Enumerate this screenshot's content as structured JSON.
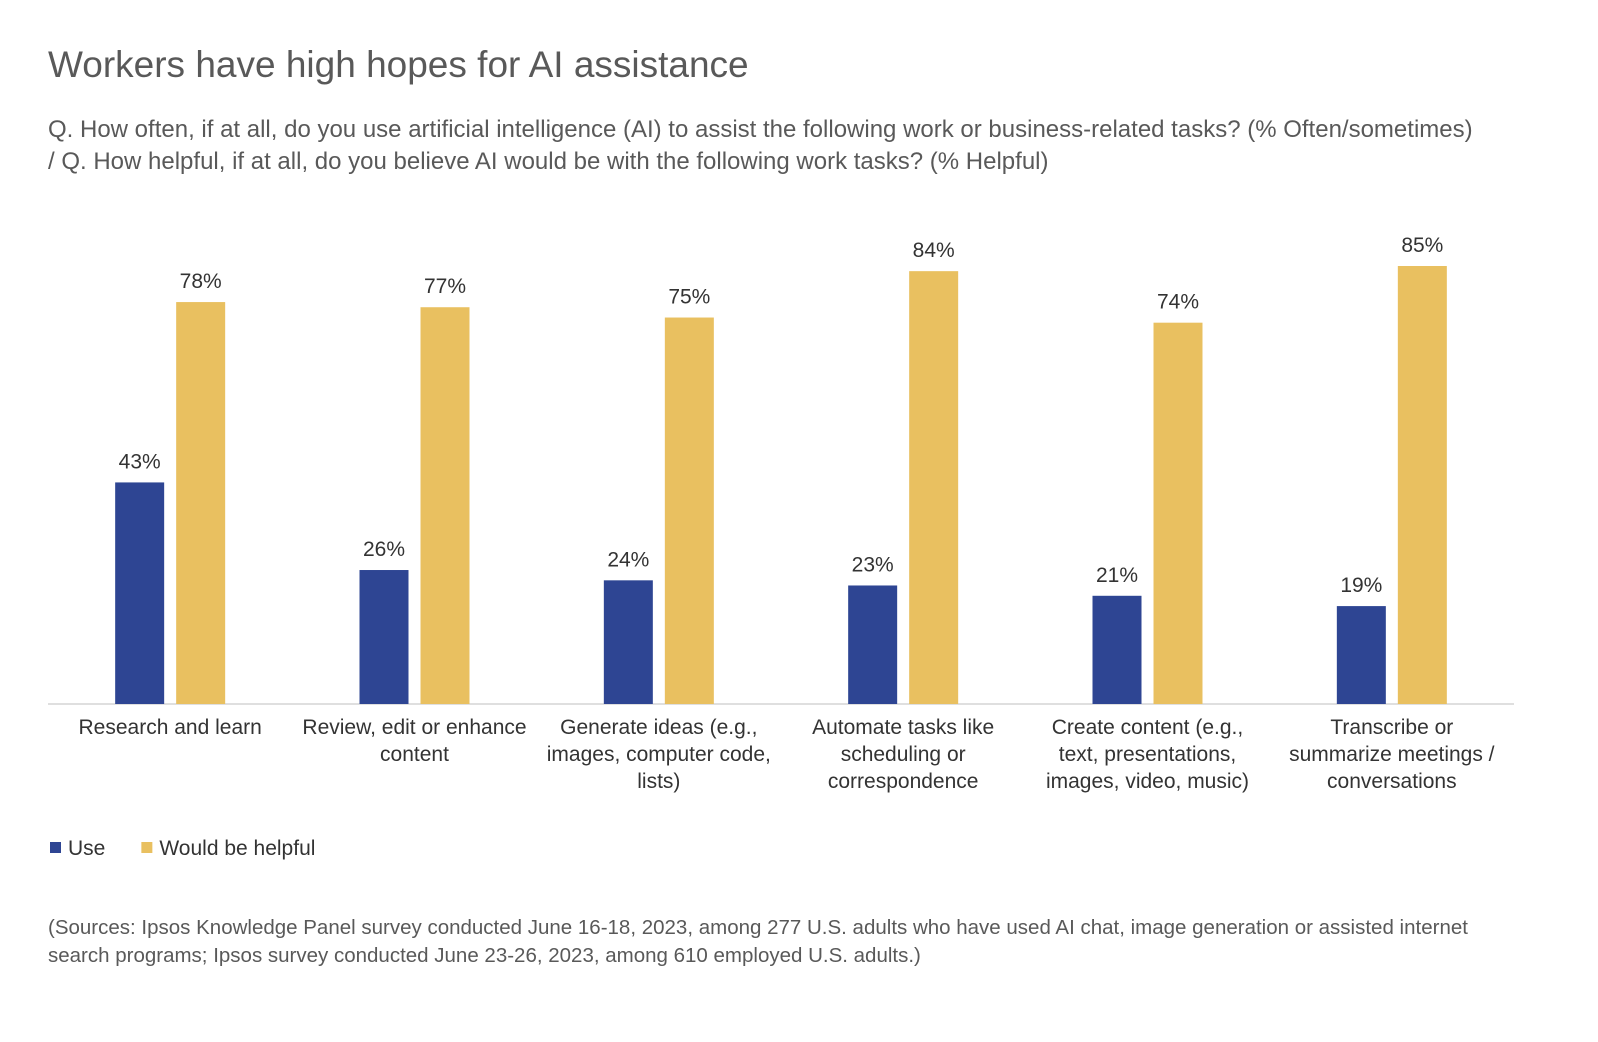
{
  "chart_data": {
    "type": "bar",
    "title": "Workers have high hopes for AI assistance",
    "subtitle": "Q. How often, if at all, do you use artificial intelligence (AI) to assist the following work or business-related tasks? (% Often/sometimes) / Q. How helpful, if at all, do you believe AI would be with the following work tasks? (% Helpful)",
    "categories": [
      "Research and learn",
      "Review, edit or enhance content",
      "Generate ideas (e.g., images, computer code, lists)",
      "Automate tasks like scheduling or correspondence",
      "Create content (e.g., text, presentations, images, video, music)",
      "Transcribe or summarize meetings / conversations"
    ],
    "series": [
      {
        "name": "Use",
        "color": "#2e4593",
        "values": [
          43,
          26,
          24,
          23,
          21,
          19
        ],
        "value_labels": [
          "43%",
          "26%",
          "24%",
          "23%",
          "21%",
          "19%"
        ]
      },
      {
        "name": "Would be helpful",
        "color": "#e9c060",
        "values": [
          78,
          77,
          75,
          84,
          74,
          85
        ],
        "value_labels": [
          "78%",
          "77%",
          "75%",
          "84%",
          "74%",
          "85%"
        ]
      }
    ],
    "source": "(Sources: Ipsos Knowledge Panel survey conducted June 16-18, 2023, among 277 U.S. adults who have used AI chat, image generation or assisted internet search programs; Ipsos survey conducted June 23-26, 2023, among 610 employed U.S. adults.)"
  }
}
